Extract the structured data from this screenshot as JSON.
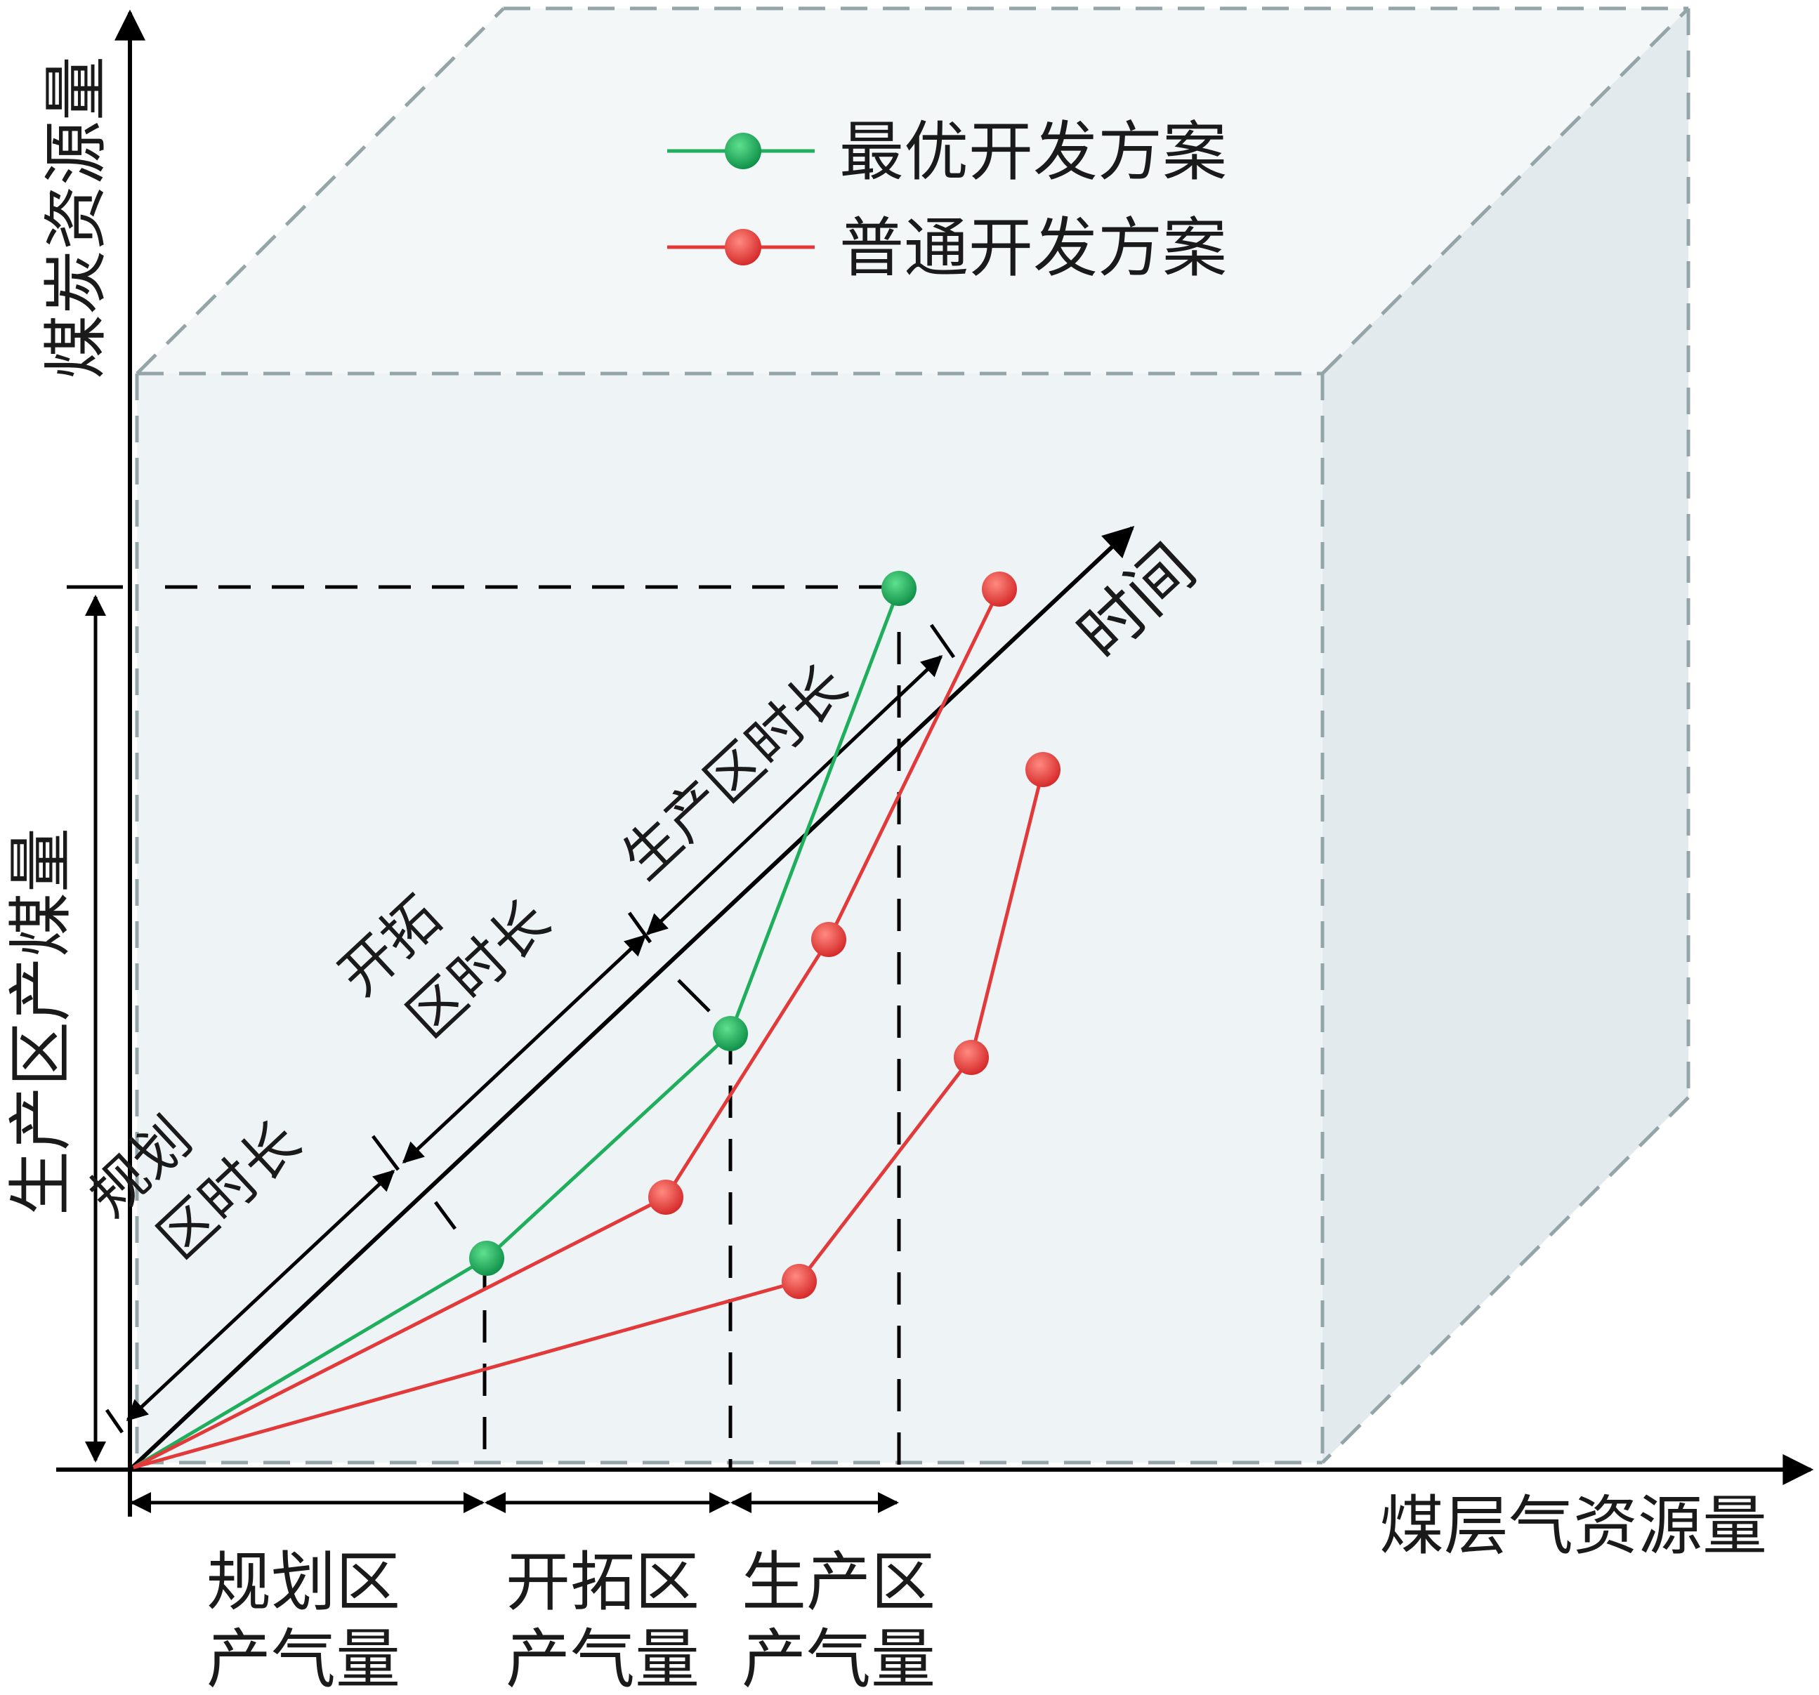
{
  "axes": {
    "y_axis_label": "煤炭资源量",
    "x_axis_label": "煤层气资源量",
    "diagonal_axis_label": "时间",
    "left_bracket_label": "生产区产煤量"
  },
  "legend": {
    "items": [
      {
        "label": "最优开发方案",
        "color": "#1fae5b"
      },
      {
        "label": "普通开发方案",
        "color": "#e23a3a"
      }
    ]
  },
  "time_segments": [
    {
      "line1": "规划",
      "line2": "区时长"
    },
    {
      "line1": "开拓",
      "line2": "区时长"
    },
    {
      "line1": "",
      "line2": "生产区时长"
    }
  ],
  "gas_segments": [
    {
      "line1": "规划区",
      "line2": "产气量"
    },
    {
      "line1": "开拓区",
      "line2": "产气量"
    },
    {
      "line1": "生产区",
      "line2": "产气量"
    }
  ],
  "colors": {
    "optimal": "#1fae5b",
    "normal": "#e23a3a",
    "box_fill": "#eef4f6",
    "box_side": "#e0e9ec",
    "box_edge": "#93a5a8",
    "ink": "#000000"
  }
}
